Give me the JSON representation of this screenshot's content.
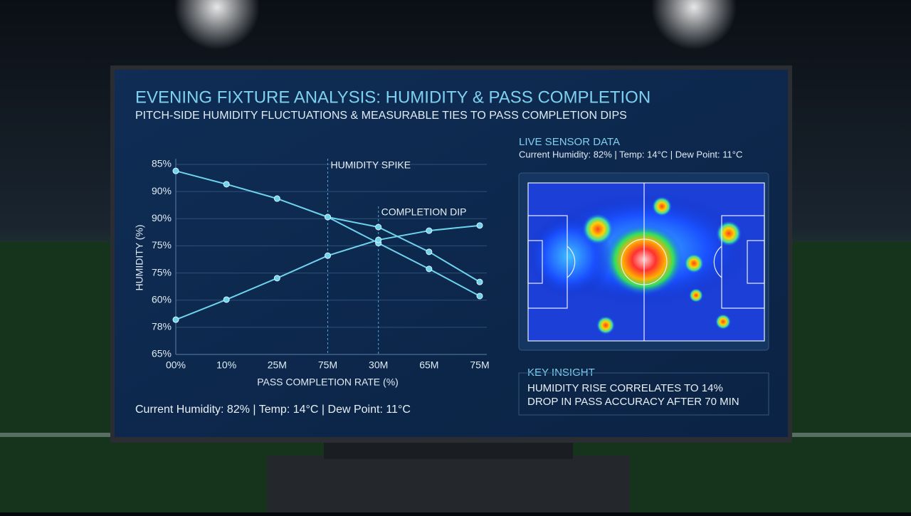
{
  "title": "EVENING FIXTURE ANALYSIS: HUMIDITY & PASS COMPLETION",
  "subtitle": "PITCH-SIDE HUMIDITY FLUCTUATIONS & MEASURABLE TIES TO PASS COMPLETION DIPS",
  "footer": "Current Humidity: 82% | Temp: 14°C | Dew Point: 11°C",
  "sensor": {
    "title": "LIVE SENSOR DATA",
    "readout": "Current Humidity: 82% | Temp: 14°C | Dew Point: 11°C"
  },
  "insight": {
    "title": "KEY INSIGHT",
    "lines": [
      "HUMIDITY RISE CORRELATES TO 14%",
      "DROP IN PASS ACCURACY AFTER 70 MIN"
    ]
  },
  "chart_data": {
    "type": "line",
    "x_label": "PASS COMPLETION RATE (%)",
    "y_label": "HUMIDITY (%)",
    "categories": [
      "00%",
      "10%",
      "25M",
      "75M",
      "30M",
      "65M",
      "75M"
    ],
    "y_categories": [
      "65%",
      "78%",
      "60%",
      "75%",
      "75%",
      "90%",
      "90%",
      "85%"
    ],
    "ylim": [
      0,
      7
    ],
    "grid": true,
    "series": [
      {
        "color": "#6fd3ee",
        "values": [
          6.76,
          6.27,
          5.74,
          5.06,
          4.69,
          3.78,
          2.67
        ]
      },
      {
        "color": "#6fd3ee",
        "values": [
          null,
          null,
          null,
          5.06,
          4.1,
          3.15,
          2.15
        ]
      },
      {
        "color": "#6fd3ee",
        "values": [
          1.28,
          2.02,
          2.81,
          3.64,
          4.22,
          4.56,
          4.75
        ]
      }
    ],
    "annotations": [
      {
        "text": "HUMIDITY SPIKE",
        "x": 3
      },
      {
        "text": "COMPLETION DIP",
        "x": 4
      }
    ]
  }
}
